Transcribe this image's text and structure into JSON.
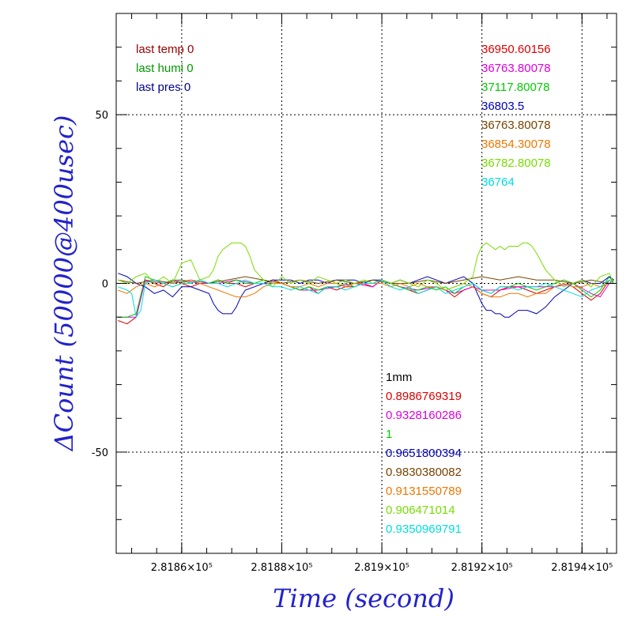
{
  "chart_data": {
    "type": "line",
    "xlabel": "Time (second)",
    "ylabel": "ΔCount (50000@400usec)",
    "xlim": [
      281844.6,
      281954.6
    ],
    "ylim": [
      -80,
      80
    ],
    "grid": true,
    "x_ticks": [
      {
        "value": 281859,
        "label": "2.8186×10⁵"
      },
      {
        "value": 281881,
        "label": "2.8188×10⁵"
      },
      {
        "value": 281903,
        "label": "2.819×10⁵"
      },
      {
        "value": 281925,
        "label": "2.8192×10⁵"
      },
      {
        "value": 281947,
        "label": "2.8194×10⁵"
      }
    ],
    "y_ticks": [
      {
        "value": 50,
        "label": "50"
      },
      {
        "value": 0,
        "label": "0"
      },
      {
        "value": -50,
        "label": "-50"
      }
    ],
    "legend_left": [
      {
        "text": "last temp 0",
        "color": "#990000"
      },
      {
        "text": "last humi 0",
        "color": "#009900"
      },
      {
        "text": "last pres 0",
        "color": "#000099"
      }
    ],
    "legend_right_top": [
      {
        "text": "36950.60156",
        "color": "#dd0000"
      },
      {
        "text": "36763.80078",
        "color": "#dd00dd"
      },
      {
        "text": "37117.80078",
        "color": "#00cc00"
      },
      {
        "text": "36803.5",
        "color": "#0000bb"
      },
      {
        "text": "36763.80078",
        "color": "#774400"
      },
      {
        "text": "36854.30078",
        "color": "#ee7700"
      },
      {
        "text": "36782.80078",
        "color": "#77dd00"
      },
      {
        "text": "36764",
        "color": "#00dddd"
      }
    ],
    "legend_mid_bottom": [
      {
        "text": "1mm",
        "color": "#000000"
      },
      {
        "text": "0.8986769319",
        "color": "#dd0000"
      },
      {
        "text": "0.9328160286",
        "color": "#dd00dd"
      },
      {
        "text": "1",
        "color": "#00cc00"
      },
      {
        "text": "0.9651800394",
        "color": "#0000bb"
      },
      {
        "text": "0.9830380082",
        "color": "#774400"
      },
      {
        "text": "0.9131550789",
        "color": "#ee7700"
      },
      {
        "text": "0.906471014",
        "color": "#77dd00"
      },
      {
        "text": "0.9350969791",
        "color": "#00dddd"
      }
    ],
    "series": [
      {
        "color": "#dd0000",
        "x": [
          281845,
          281847,
          281849,
          281851,
          281853,
          281855,
          281857,
          281859,
          281861,
          281863,
          281865,
          281867,
          281869,
          281871,
          281873,
          281875,
          281877,
          281879,
          281881,
          281883,
          281885,
          281887,
          281889,
          281891,
          281893,
          281895,
          281897,
          281899,
          281901,
          281903,
          281905,
          281907,
          281909,
          281911,
          281913,
          281915,
          281917,
          281919,
          281921,
          281923,
          281925,
          281927,
          281929,
          281931,
          281933,
          281935,
          281937,
          281939,
          281941,
          281943,
          281945,
          281947,
          281949,
          281951,
          281953,
          281954
        ],
        "y": [
          -11,
          -12,
          -10,
          1,
          0,
          -1,
          1,
          0,
          -1,
          0,
          0,
          1,
          0,
          0,
          -1,
          0,
          0,
          1,
          0,
          -1,
          -2,
          -1,
          -3,
          -1,
          -2,
          -1,
          -1,
          0,
          -1,
          1,
          0,
          -1,
          -2,
          -3,
          -2,
          -1,
          -2,
          -4,
          -2,
          -1,
          -3,
          -4,
          -2,
          -1,
          -1,
          -2,
          -3,
          -2,
          -1,
          0,
          -1,
          -3,
          -5,
          -3,
          1,
          0
        ]
      },
      {
        "color": "#dd00dd",
        "x": [
          281845,
          281849,
          281851,
          281855,
          281859,
          281863,
          281867,
          281871,
          281875,
          281879,
          281881,
          281885,
          281889,
          281893,
          281897,
          281901,
          281903,
          281907,
          281911,
          281915,
          281919,
          281923,
          281925,
          281929,
          281933,
          281937,
          281941,
          281945,
          281949,
          281951,
          281953,
          281954
        ],
        "y": [
          -10,
          -10,
          1,
          0,
          1,
          0,
          0,
          1,
          0,
          0,
          0,
          -2,
          -2,
          -1,
          0,
          -1,
          1,
          -1,
          -2,
          -1,
          -3,
          -1,
          -2,
          -2,
          -1,
          -1,
          -1,
          0,
          -3,
          -4,
          0,
          0
        ]
      },
      {
        "color": "#00cc00",
        "x": [
          281845,
          281847,
          281849,
          281851,
          281853,
          281855,
          281857,
          281859,
          281861,
          281863,
          281865,
          281867,
          281869,
          281871,
          281873,
          281875,
          281877,
          281879,
          281881,
          281883,
          281885,
          281887,
          281889,
          281891,
          281893,
          281895,
          281897,
          281899,
          281901,
          281903,
          281905,
          281907,
          281909,
          281911,
          281913,
          281915,
          281917,
          281919,
          281921,
          281923,
          281925,
          281927,
          281929,
          281931,
          281933,
          281935,
          281937,
          281939,
          281941,
          281943,
          281945,
          281947,
          281949,
          281951,
          281953,
          281954
        ],
        "y": [
          -10,
          -10,
          -9,
          2,
          1,
          0,
          1,
          1,
          0,
          1,
          0,
          1,
          0,
          1,
          0,
          0,
          1,
          0,
          0,
          -1,
          -2,
          -1,
          -2,
          -1,
          -1,
          0,
          -1,
          0,
          0,
          1,
          0,
          -1,
          -2,
          -2,
          -1,
          -2,
          -1,
          -3,
          -1,
          0,
          -2,
          -3,
          -1,
          -1,
          0,
          -1,
          -2,
          -1,
          0,
          1,
          0,
          -2,
          -4,
          -2,
          2,
          0
        ]
      },
      {
        "color": "#0000bb",
        "x": [
          281845,
          281847,
          281849,
          281851,
          281853,
          281855,
          281857,
          281859,
          281861,
          281863,
          281865,
          281866,
          281867,
          281868,
          281869,
          281870,
          281871,
          281872,
          281873,
          281875,
          281877,
          281879,
          281881,
          281883,
          281885,
          281887,
          281889,
          281891,
          281893,
          281895,
          281897,
          281899,
          281901,
          281903,
          281905,
          281907,
          281909,
          281911,
          281913,
          281915,
          281917,
          281919,
          281921,
          281922,
          281923,
          281924,
          281925,
          281926,
          281927,
          281928,
          281929,
          281930,
          281931,
          281932,
          281933,
          281935,
          281937,
          281939,
          281941,
          281943,
          281945,
          281947,
          281949,
          281951,
          281953,
          281954
        ],
        "y": [
          3,
          2,
          0,
          -1,
          -3,
          -2,
          -4,
          -1,
          -1,
          -2,
          -3,
          -6,
          -8,
          -9,
          -9,
          -9,
          -7,
          -4,
          -2,
          -1,
          0,
          1,
          1,
          1,
          0,
          1,
          1,
          0,
          1,
          1,
          1,
          0,
          1,
          1,
          0,
          1,
          0,
          1,
          2,
          1,
          0,
          1,
          2,
          1,
          0,
          -3,
          -6,
          -8,
          -8,
          -9,
          -9,
          -10,
          -10,
          -9,
          -8,
          -8,
          -9,
          -7,
          -4,
          -2,
          0,
          1,
          0,
          0,
          2,
          1
        ]
      },
      {
        "color": "#774400",
        "x": [
          281845,
          281849,
          281853,
          281857,
          281861,
          281865,
          281869,
          281873,
          281877,
          281881,
          281885,
          281889,
          281893,
          281897,
          281901,
          281905,
          281909,
          281913,
          281917,
          281921,
          281925,
          281929,
          281933,
          281937,
          281941,
          281945,
          281949,
          281953,
          281954
        ],
        "y": [
          1,
          0,
          1,
          0,
          1,
          0,
          1,
          2,
          1,
          0,
          1,
          0,
          1,
          0,
          1,
          0,
          0,
          1,
          0,
          1,
          2,
          1,
          2,
          1,
          1,
          0,
          1,
          0,
          1
        ]
      },
      {
        "color": "#ee7700",
        "x": [
          281845,
          281847,
          281849,
          281851,
          281853,
          281855,
          281857,
          281859,
          281861,
          281863,
          281865,
          281867,
          281869,
          281871,
          281873,
          281875,
          281877,
          281879,
          281881,
          281883,
          281885,
          281887,
          281889,
          281891,
          281893,
          281895,
          281897,
          281899,
          281901,
          281903,
          281905,
          281907,
          281909,
          281911,
          281913,
          281915,
          281917,
          281919,
          281921,
          281923,
          281925,
          281927,
          281929,
          281931,
          281933,
          281935,
          281937,
          281939,
          281941,
          281943,
          281945,
          281947,
          281949,
          281951,
          281953,
          281954
        ],
        "y": [
          -2,
          -3,
          -1,
          0,
          -1,
          0,
          -1,
          0,
          1,
          0,
          -1,
          -2,
          -3,
          -4,
          -4,
          -3,
          -1,
          0,
          0,
          -1,
          -1,
          0,
          -1,
          0,
          0,
          -1,
          0,
          0,
          0,
          0,
          -1,
          0,
          -1,
          0,
          -1,
          -1,
          -2,
          -1,
          0,
          -1,
          -3,
          -4,
          -4,
          -3,
          -3,
          -4,
          -3,
          -3,
          -1,
          0,
          -1,
          -1,
          0,
          -1,
          0,
          0
        ]
      },
      {
        "color": "#77dd00",
        "x": [
          281845,
          281847,
          281849,
          281851,
          281853,
          281855,
          281857,
          281859,
          281861,
          281863,
          281865,
          281866,
          281867,
          281868,
          281869,
          281870,
          281871,
          281872,
          281873,
          281874,
          281875,
          281877,
          281879,
          281881,
          281883,
          281885,
          281887,
          281889,
          281891,
          281893,
          281895,
          281897,
          281899,
          281901,
          281903,
          281905,
          281907,
          281909,
          281911,
          281913,
          281915,
          281917,
          281919,
          281921,
          281923,
          281924,
          281925,
          281926,
          281927,
          281928,
          281929,
          281930,
          281931,
          281932,
          281933,
          281934,
          281935,
          281936,
          281937,
          281939,
          281941,
          281943,
          281945,
          281947,
          281949,
          281951,
          281953,
          281954
        ],
        "y": [
          1,
          0,
          2,
          3,
          0,
          2,
          0,
          6,
          7,
          1,
          2,
          4,
          8,
          10,
          11,
          12,
          12,
          12,
          11,
          8,
          4,
          1,
          -1,
          2,
          0,
          1,
          0,
          2,
          1,
          0,
          1,
          0,
          1,
          0,
          1,
          0,
          1,
          0,
          -1,
          1,
          0,
          -2,
          -1,
          0,
          2,
          8,
          11,
          12,
          11,
          10,
          11,
          10,
          11,
          11,
          11,
          12,
          12,
          11,
          9,
          4,
          1,
          -1,
          0,
          1,
          -1,
          2,
          3,
          0
        ]
      },
      {
        "color": "#00dddd",
        "x": [
          281845,
          281847,
          281848,
          281849,
          281850,
          281851,
          281853,
          281855,
          281857,
          281859,
          281861,
          281863,
          281865,
          281867,
          281869,
          281871,
          281873,
          281875,
          281877,
          281879,
          281881,
          281883,
          281885,
          281887,
          281889,
          281891,
          281893,
          281895,
          281897,
          281899,
          281901,
          281903,
          281905,
          281907,
          281909,
          281911,
          281913,
          281915,
          281917,
          281919,
          281921,
          281923,
          281925,
          281927,
          281929,
          281931,
          281933,
          281935,
          281937,
          281939,
          281941,
          281943,
          281945,
          281947,
          281949,
          281951,
          281953,
          281954
        ],
        "y": [
          -1,
          -2,
          -3,
          -10,
          -8,
          0,
          1,
          0,
          -1,
          0,
          0,
          1,
          0,
          0,
          -1,
          0,
          1,
          0,
          0,
          -1,
          -1,
          -2,
          -1,
          -2,
          -3,
          -1,
          -1,
          -2,
          -1,
          0,
          0,
          1,
          -1,
          -2,
          -1,
          -3,
          -2,
          -1,
          -3,
          -2,
          -1,
          0,
          -2,
          -3,
          -1,
          -1,
          -2,
          -1,
          -1,
          0,
          -1,
          -2,
          -3,
          -4,
          -2,
          -1,
          1,
          0
        ]
      }
    ]
  }
}
